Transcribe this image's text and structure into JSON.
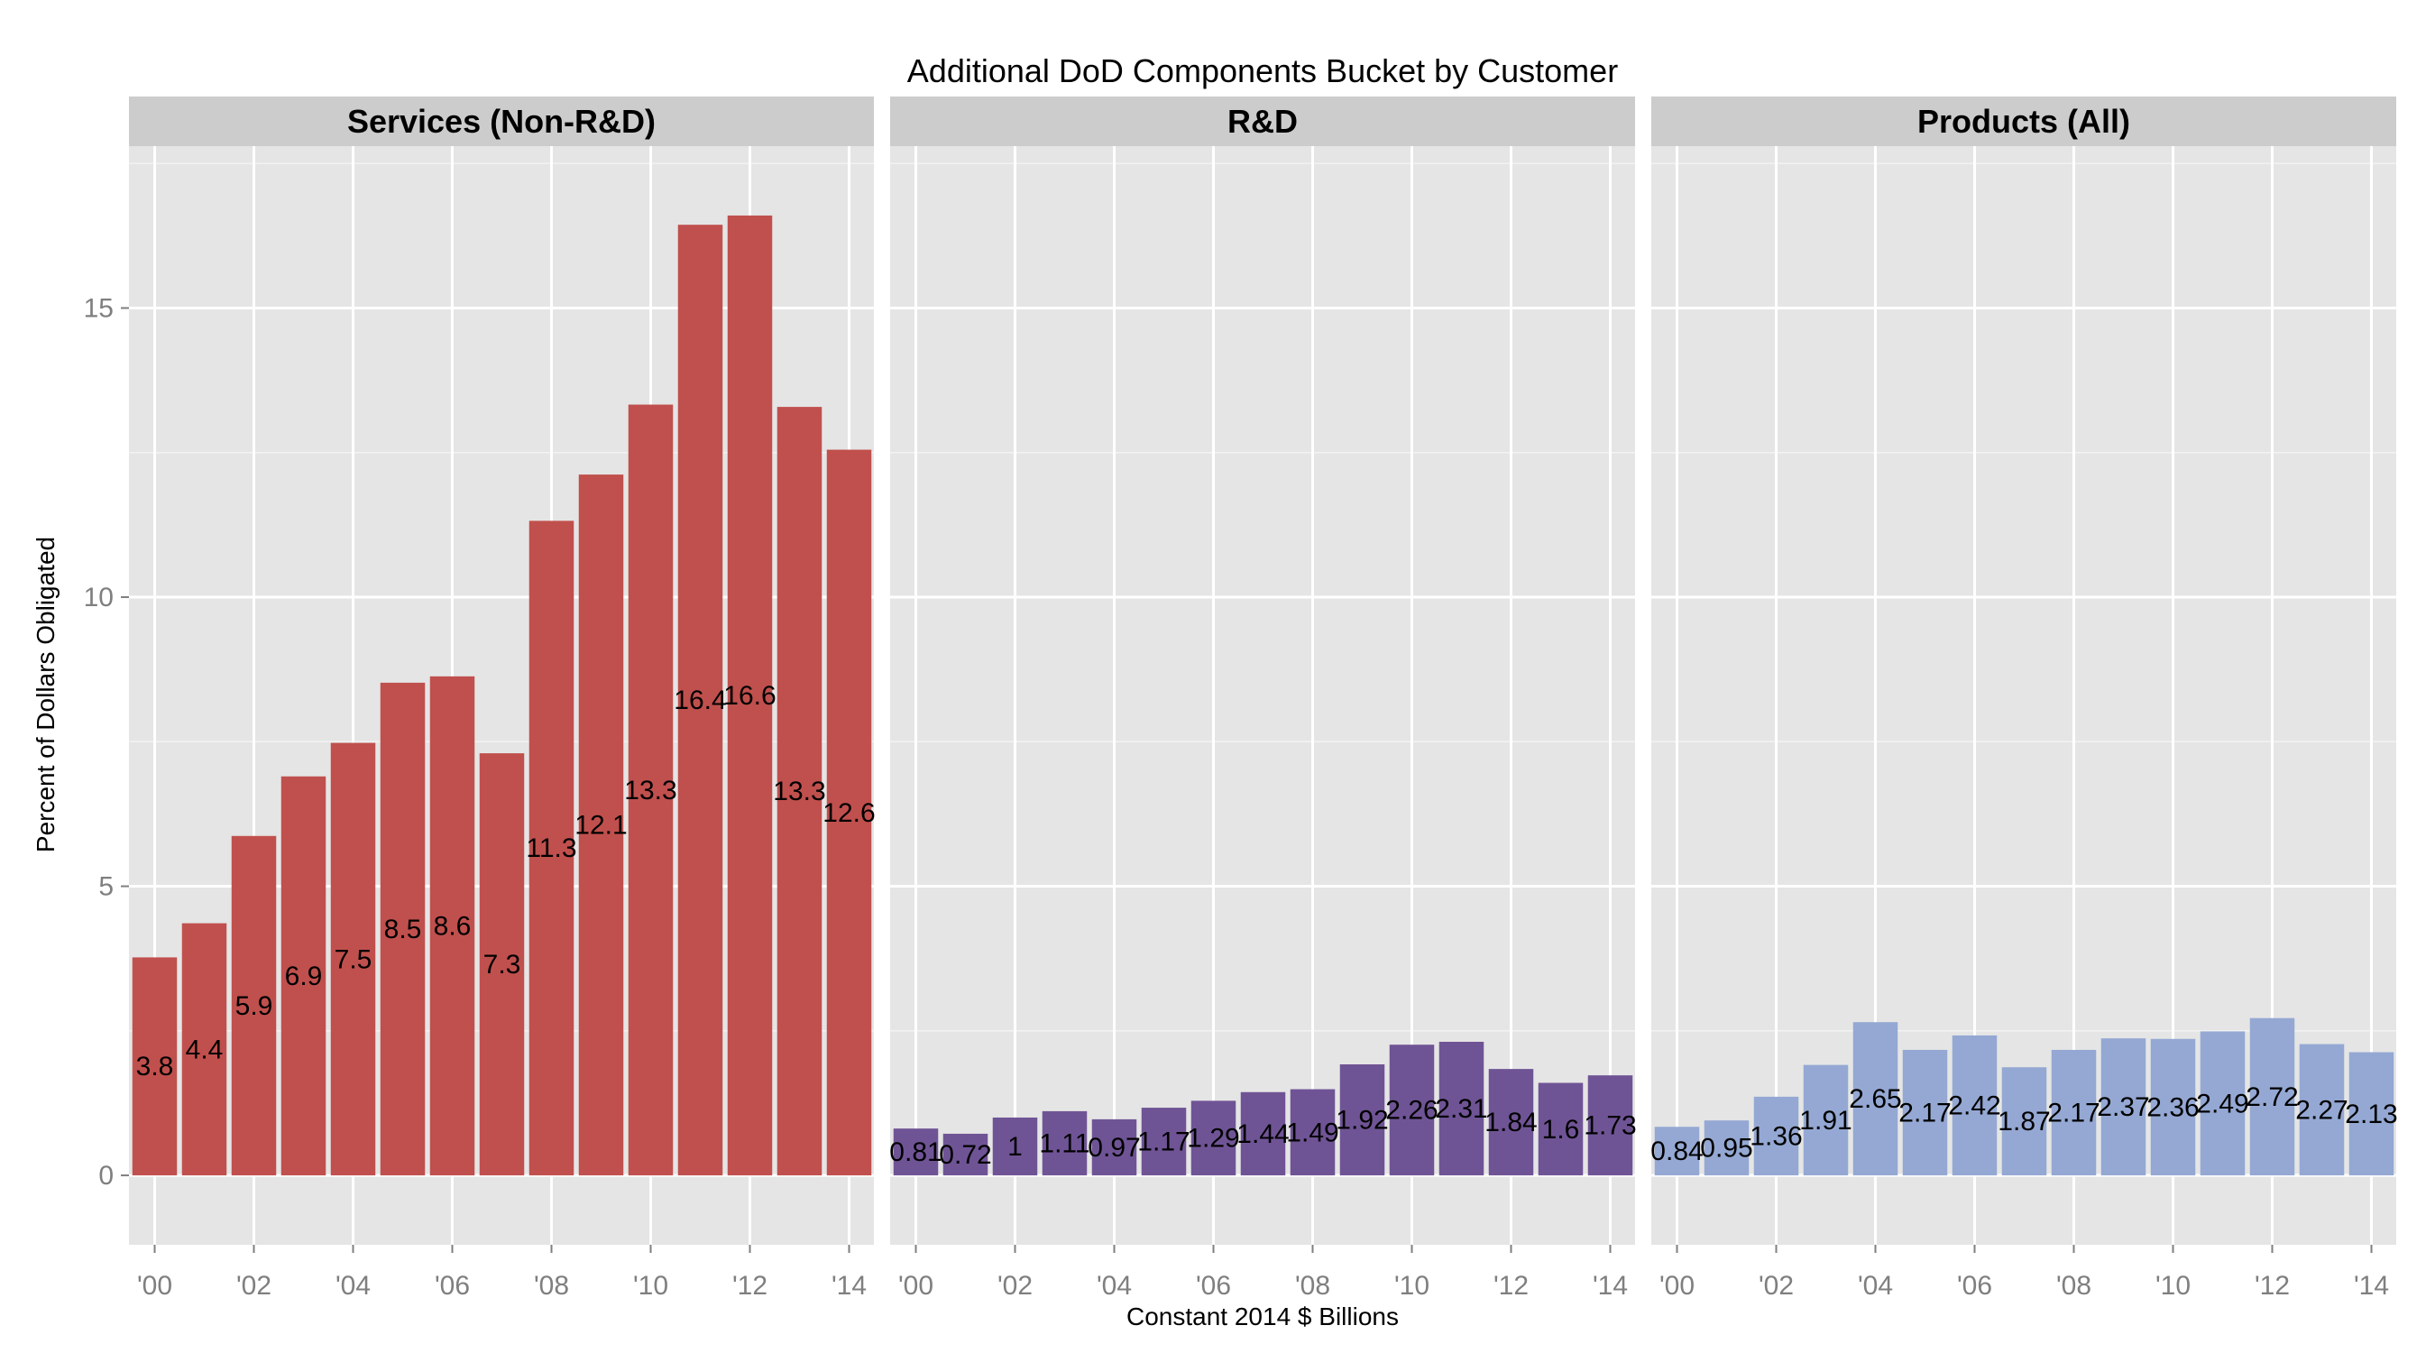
{
  "chart_data": {
    "type": "bar",
    "title": "Additional DoD Components Bucket by Customer",
    "xlabel": "Constant 2014 $ Billions",
    "ylabel": "Percent of Dollars Obligated",
    "ylim": [
      -1.2,
      17.8
    ],
    "yticks": [
      0,
      5,
      10,
      15
    ],
    "grid": true,
    "categories": [
      "2000",
      "2001",
      "2002",
      "2003",
      "2004",
      "2005",
      "2006",
      "2007",
      "2008",
      "2009",
      "2010",
      "2011",
      "2012",
      "2013",
      "2014"
    ],
    "xtick_labels": [
      "'00",
      "'02",
      "'04",
      "'06",
      "'08",
      "'10",
      "'12",
      "'14"
    ],
    "series": [
      {
        "name": "Services (Non-R&D)",
        "color": "#C0504D",
        "values": [
          3.77,
          4.36,
          5.87,
          6.9,
          7.48,
          8.52,
          8.63,
          7.3,
          11.32,
          12.12,
          13.33,
          16.44,
          16.6,
          13.29,
          12.55
        ],
        "labels": [
          "3.8",
          "4.4",
          "5.9",
          "6.9",
          "7.5",
          "8.5",
          "8.6",
          "7.3",
          "11.3",
          "12.1",
          "13.3",
          "16.4",
          "16.6",
          "13.3",
          "12.6"
        ]
      },
      {
        "name": "R&D",
        "color": "#6F5495",
        "values": [
          0.81,
          0.72,
          1.0,
          1.11,
          0.97,
          1.17,
          1.29,
          1.44,
          1.49,
          1.92,
          2.26,
          2.31,
          1.84,
          1.6,
          1.73
        ],
        "labels": [
          "0.81",
          "0.72",
          "1",
          "1.11",
          "0.97",
          "1.17",
          "1.29",
          "1.44",
          "1.49",
          "1.92",
          "2.26",
          "2.31",
          "1.84",
          "1.6",
          "1.73"
        ]
      },
      {
        "name": "Products (All)",
        "color": "#94A8D3",
        "values": [
          0.84,
          0.95,
          1.36,
          1.91,
          2.65,
          2.17,
          2.42,
          1.87,
          2.17,
          2.37,
          2.36,
          2.49,
          2.72,
          2.27,
          2.13
        ],
        "labels": [
          "0.84",
          "0.95",
          "1.36",
          "1.91",
          "2.65",
          "2.17",
          "2.42",
          "1.87",
          "2.17",
          "2.37",
          "2.36",
          "2.49",
          "2.72",
          "2.27",
          "2.13"
        ]
      }
    ]
  }
}
